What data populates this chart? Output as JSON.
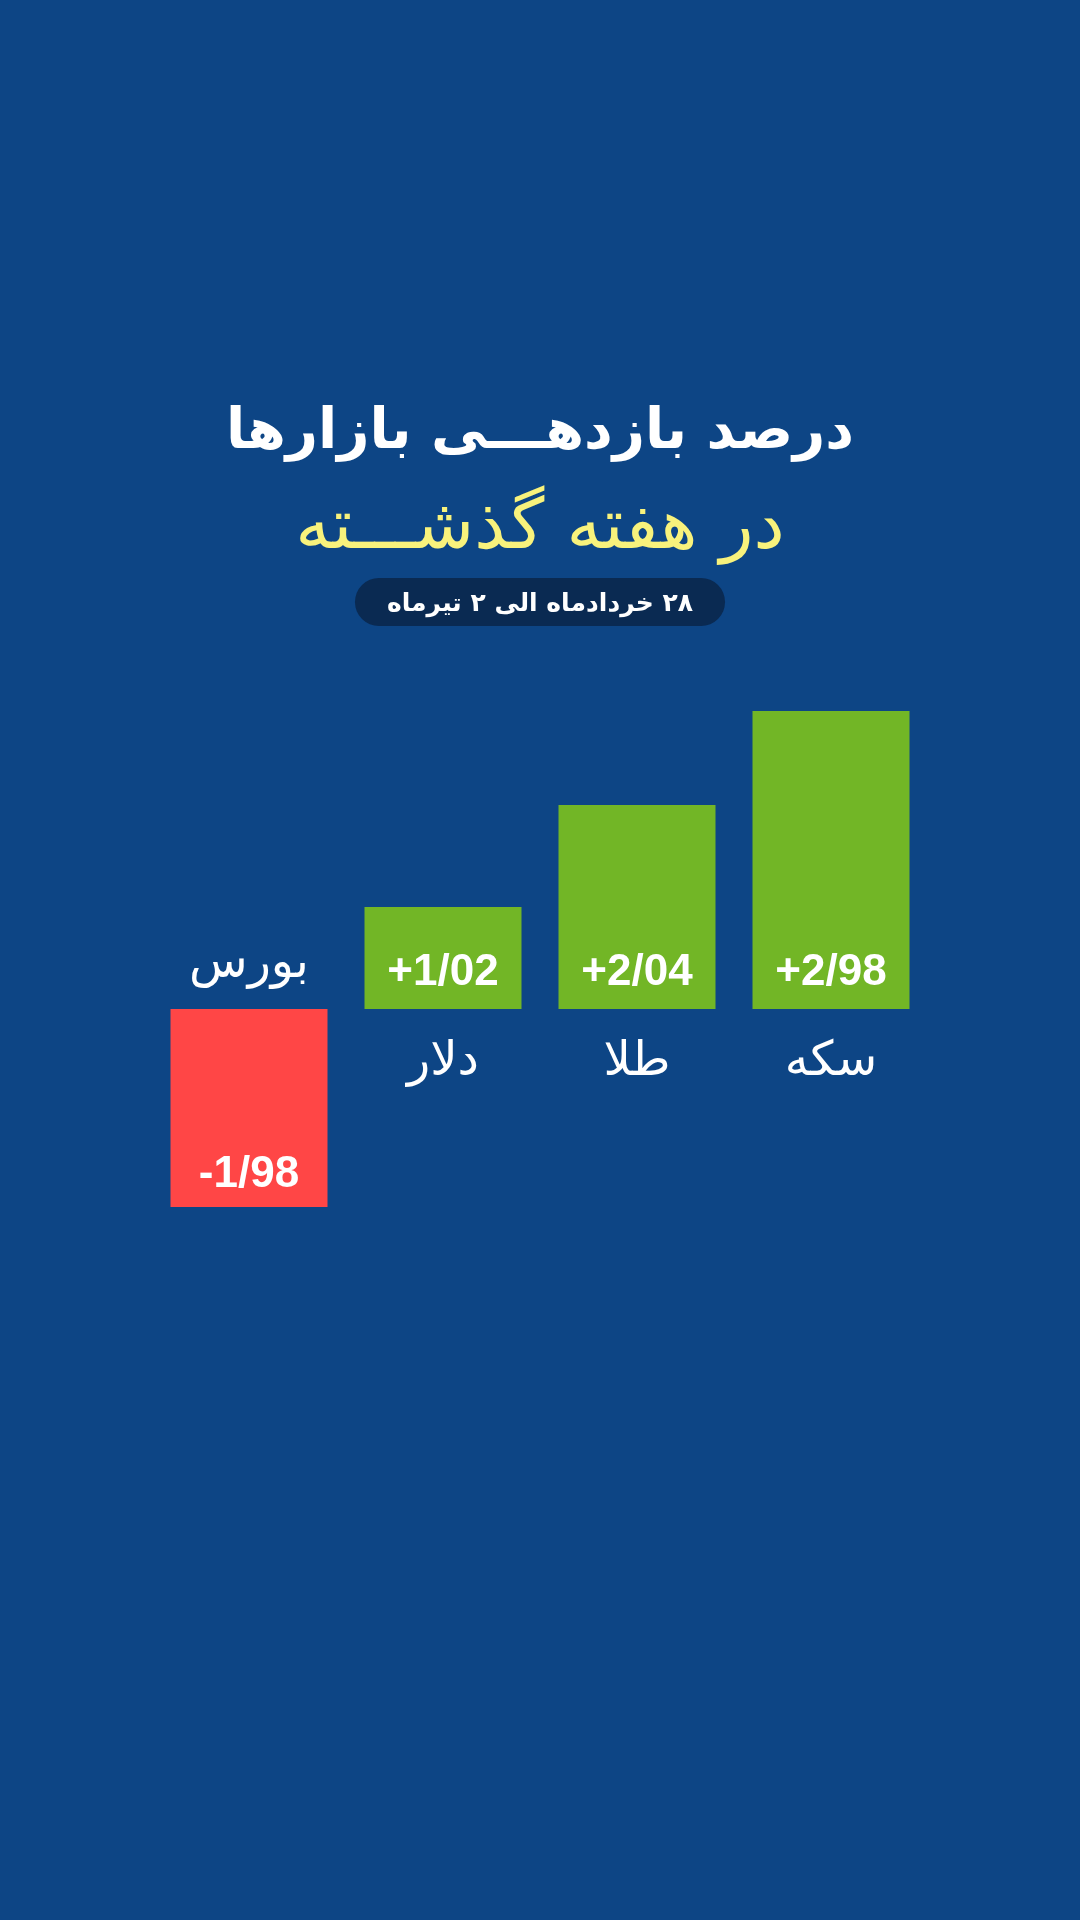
{
  "chart_data": {
    "type": "bar",
    "title": "درصد بازدهـــی بازارها",
    "subtitle": "در هفته گذشـــته",
    "annotations": [
      "۲۸ خردادماه الی ۲ تیرماه"
    ],
    "categories": [
      "بورس",
      "دلار",
      "طلا",
      "سکه"
    ],
    "values": [
      -1.98,
      1.02,
      2.04,
      2.98
    ],
    "colors": [
      "#ff4646",
      "#72b626",
      "#72b626",
      "#72b626"
    ],
    "value_labels": [
      "-1/98",
      "+1/02",
      "+2/04",
      "+2/98"
    ]
  }
}
